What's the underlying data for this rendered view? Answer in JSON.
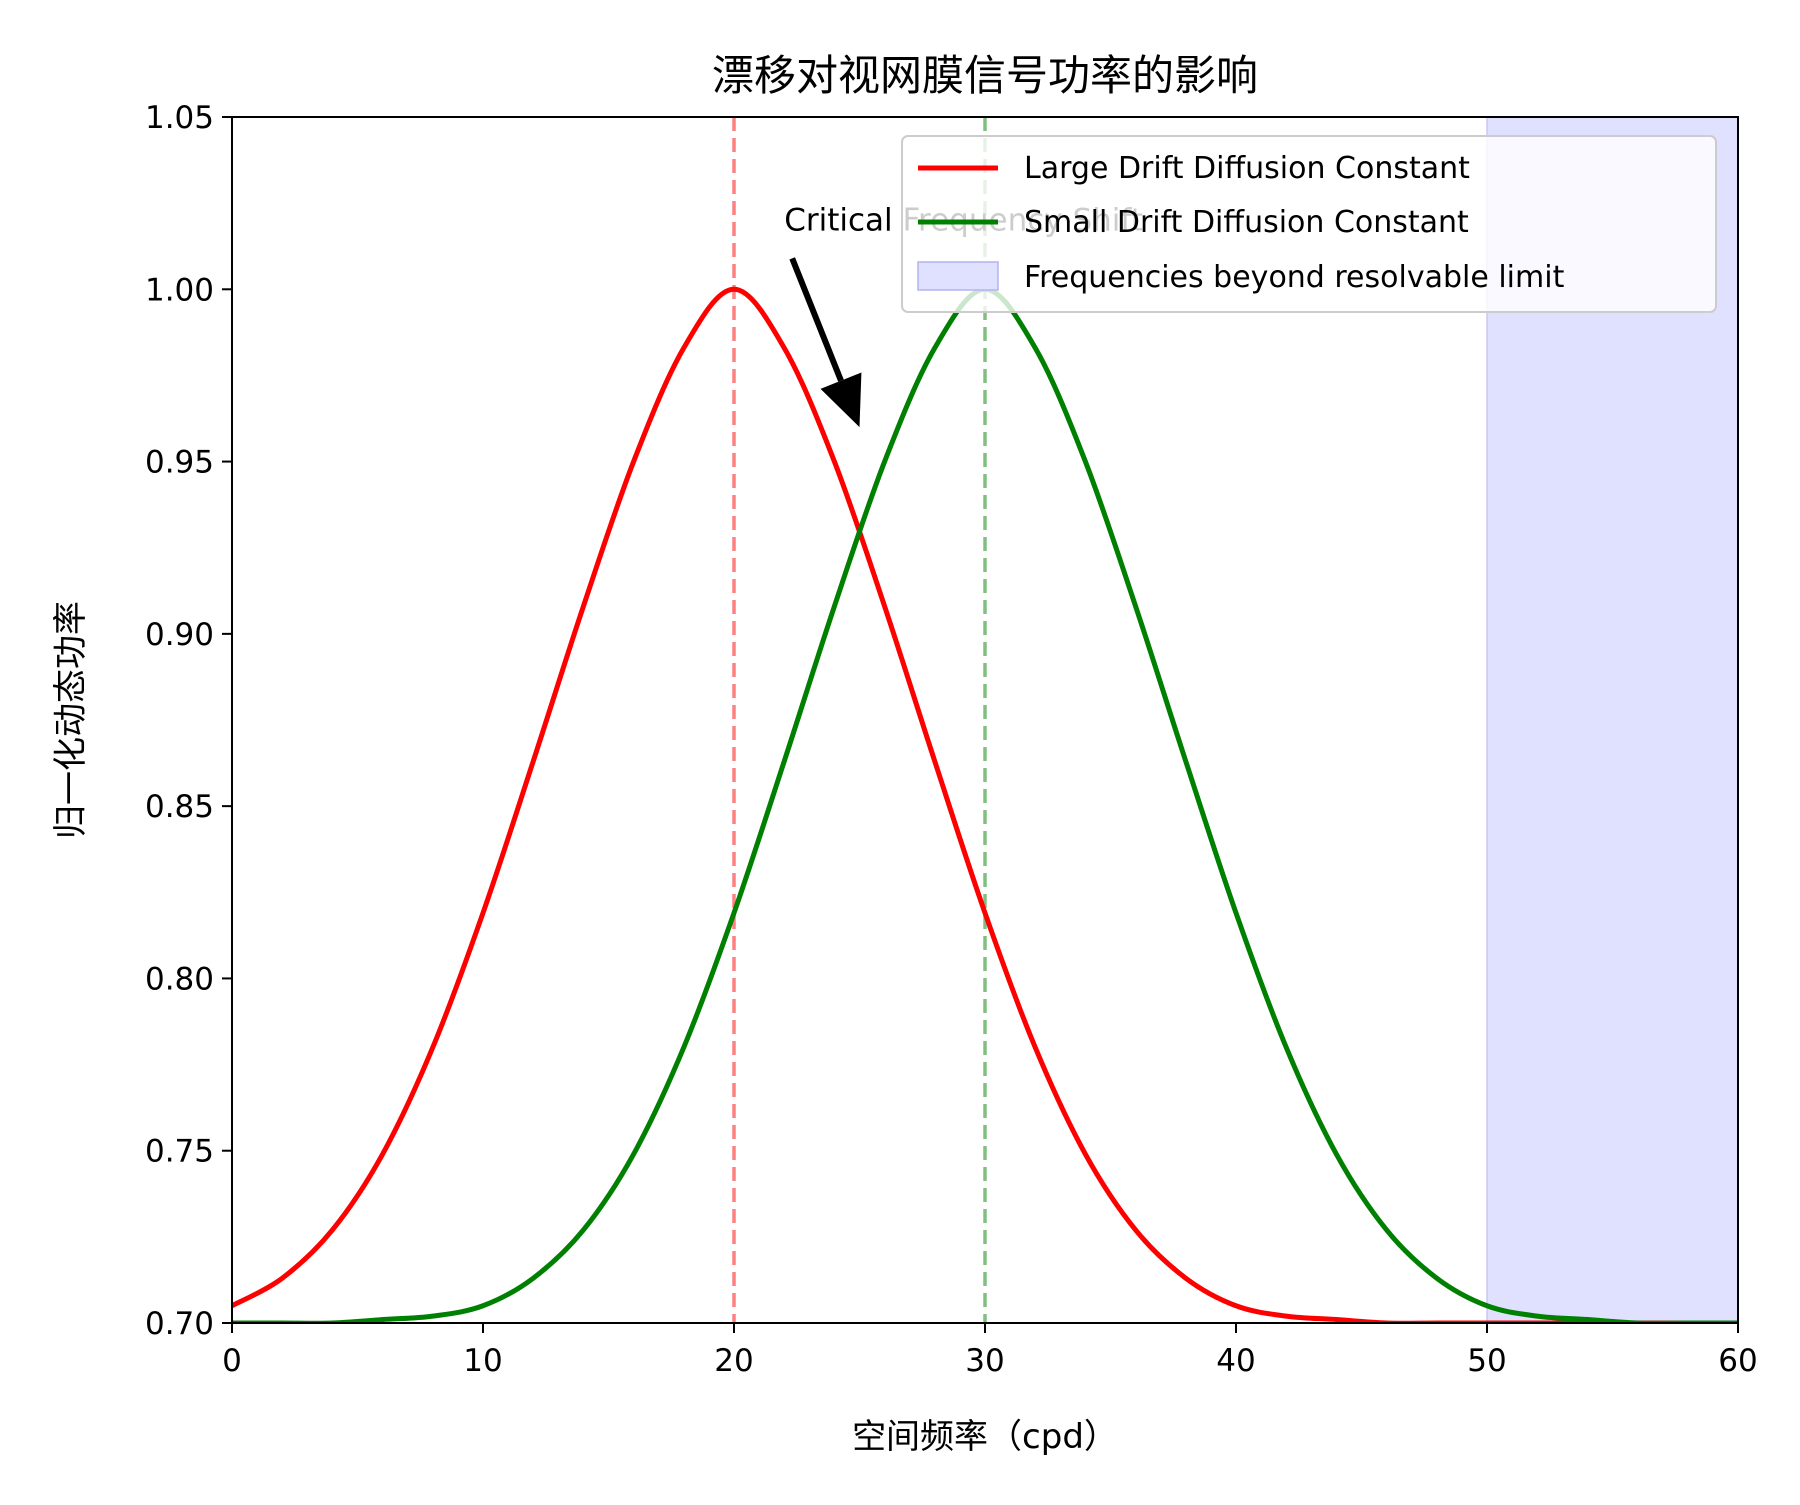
{
  "chart_data": {
    "type": "line",
    "title": "漂移对视网膜信号功率的影响",
    "xlabel": "空间频率（cpd）",
    "ylabel": "归一化动态功率",
    "xlim": [
      0,
      60
    ],
    "ylim": [
      0.7,
      1.05
    ],
    "x_ticks": [
      "0",
      "10",
      "20",
      "30",
      "40",
      "50",
      "60"
    ],
    "y_ticks": [
      "0.70",
      "0.75",
      "0.80",
      "0.85",
      "0.90",
      "0.95",
      "1.00",
      "1.05"
    ],
    "grid": false,
    "legend_placement": "top-right",
    "series": [
      {
        "name": "Large Drift Diffusion Constant",
        "color": "#ff0000",
        "x": [
          0,
          2,
          4,
          6,
          8,
          10,
          12,
          14,
          16,
          18,
          20,
          22,
          24,
          26,
          28,
          30,
          32,
          34,
          36,
          38,
          40,
          42,
          44,
          46,
          48,
          50,
          52,
          54,
          56,
          58,
          60
        ],
        "y": [
          0.705,
          0.713,
          0.727,
          0.749,
          0.78,
          0.819,
          0.863,
          0.908,
          0.95,
          0.983,
          1.0,
          0.983,
          0.95,
          0.908,
          0.863,
          0.819,
          0.78,
          0.749,
          0.727,
          0.713,
          0.705,
          0.702,
          0.701,
          0.7,
          0.7,
          0.7,
          0.7,
          0.7,
          0.7,
          0.7,
          0.7
        ]
      },
      {
        "name": "Small Drift Diffusion Constant",
        "color": "#008000",
        "x": [
          0,
          2,
          4,
          6,
          8,
          10,
          12,
          14,
          16,
          18,
          20,
          22,
          24,
          26,
          28,
          30,
          32,
          34,
          36,
          38,
          40,
          42,
          44,
          46,
          48,
          50,
          52,
          54,
          56,
          58,
          60
        ],
        "y": [
          0.7,
          0.7,
          0.7,
          0.701,
          0.702,
          0.705,
          0.713,
          0.727,
          0.749,
          0.78,
          0.819,
          0.863,
          0.908,
          0.95,
          0.983,
          1.0,
          0.983,
          0.95,
          0.908,
          0.863,
          0.819,
          0.78,
          0.749,
          0.727,
          0.713,
          0.705,
          0.702,
          0.701,
          0.7,
          0.7,
          0.7
        ]
      }
    ],
    "vlines": [
      {
        "x": 20,
        "color": "#ff8080",
        "style": "dashed"
      },
      {
        "x": 30,
        "color": "#80bf80",
        "style": "dashed"
      }
    ],
    "shaded_region": {
      "x_start": 50,
      "x_end": 60,
      "label": "Frequencies beyond resolvable limit",
      "color": "#e0e0ff"
    },
    "annotation": {
      "text": "Critical Frequency Shift",
      "text_x": 22,
      "text_y": 1.02,
      "arrow_to_x": 25,
      "arrow_to_y": 0.96
    }
  }
}
